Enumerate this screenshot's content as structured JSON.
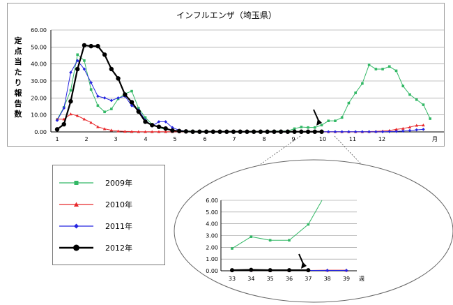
{
  "chart_data": [
    {
      "type": "line",
      "title": "インフルエンザ（埼玉県）",
      "ylabel": "定点当たり報告数",
      "xlabel": "月",
      "x_ticks": [
        "1",
        "2",
        "3",
        "4",
        "5",
        "6",
        "7",
        "8",
        "9",
        "10",
        "11",
        "12",
        "月"
      ],
      "y_ticks": [
        "0.00",
        "10.00",
        "20.00",
        "30.00",
        "40.00",
        "50.00",
        "60.00"
      ],
      "ylim": [
        0,
        60
      ],
      "grid": true,
      "series": [
        {
          "name": "2009年",
          "color": "#33b866",
          "marker": "square",
          "values": [
            7.3,
            14.5,
            24.5,
            45.5,
            42,
            25,
            15.5,
            11.8,
            13.5,
            19.5,
            22.5,
            24,
            14,
            8.5,
            4.5,
            2.5,
            1.5,
            1,
            0.6,
            0.5,
            0.5,
            0.3,
            0.3,
            0.3,
            0.3,
            0.3,
            0.3,
            0.3,
            0.3,
            0.3,
            0.3,
            0.3,
            0.5,
            0.5,
            0.5,
            1.9,
            2.9,
            2.6,
            2.6,
            4,
            6.5,
            6.5,
            8.5,
            17,
            23,
            28.5,
            39.5,
            37,
            37,
            38.5,
            36,
            27,
            22,
            19,
            16,
            7.8
          ]
        },
        {
          "name": "2010年",
          "color": "#e8282b",
          "marker": "triangle",
          "values": [
            7.5,
            7.5,
            10.5,
            9.5,
            7.5,
            5.5,
            3,
            1.8,
            1,
            0.5,
            0.3,
            0.2,
            0.1,
            0.1,
            0.1,
            0.1,
            0.1,
            0.1,
            0.1,
            0.1,
            0.1,
            0.1,
            0.1,
            0.1,
            0.1,
            0.1,
            0.1,
            0.1,
            0.1,
            0.1,
            0.1,
            0.1,
            0.1,
            0.1,
            0.1,
            0.1,
            0.1,
            0.1,
            0.1,
            0.1,
            0.1,
            0.1,
            0.1,
            0.1,
            0.1,
            0.1,
            0.2,
            0.3,
            0.5,
            0.8,
            1.5,
            2,
            2.8,
            3.8,
            4
          ]
        },
        {
          "name": "2011年",
          "color": "#2525e0",
          "marker": "diamond",
          "values": [
            6.8,
            14,
            35,
            42,
            37,
            29,
            21,
            20,
            18.5,
            20,
            21,
            15.5,
            13,
            7,
            3.5,
            6,
            6,
            2.5,
            1,
            0.5,
            0.3,
            0.2,
            0.1,
            0.1,
            0.1,
            0.1,
            0.1,
            0.1,
            0.1,
            0.1,
            0.1,
            0.1,
            0.1,
            0.1,
            0.1,
            0.1,
            0.1,
            0.1,
            0.1,
            0.1,
            0.1,
            0.1,
            0.1,
            0.1,
            0.1,
            0.1,
            0.1,
            0.1,
            0.1,
            0.2,
            0.3,
            0.5,
            0.8,
            1.2,
            1.5
          ]
        },
        {
          "name": "2012年",
          "color": "#000000",
          "marker": "circle",
          "values": [
            1.5,
            4.5,
            18,
            37,
            51,
            50.5,
            50.5,
            45.5,
            37,
            31.5,
            22,
            17.5,
            12,
            6,
            4,
            3,
            2,
            0.8,
            0.5,
            0.3,
            0.1,
            0.1,
            0.1,
            0.1,
            0.1,
            0.1,
            0.1,
            0.1,
            0.1,
            0.1,
            0.1,
            0.1,
            0.1,
            0.1,
            0.1,
            0.1,
            0.1,
            0.1,
            0.1,
            0.1
          ]
        }
      ]
    },
    {
      "type": "line",
      "title": "",
      "xlabel": "週",
      "x_ticks": [
        "33",
        "34",
        "35",
        "36",
        "37",
        "38",
        "39",
        "週"
      ],
      "y_ticks": [
        "0.00",
        "1.00",
        "2.00",
        "3.00",
        "4.00",
        "5.00",
        "6.00"
      ],
      "ylim": [
        0,
        6
      ],
      "grid": true,
      "series": [
        {
          "name": "2009年",
          "color": "#33b866",
          "marker": "square",
          "x": [
            33,
            34,
            35,
            36,
            37,
            38
          ],
          "values": [
            1.9,
            2.9,
            2.6,
            2.6,
            3.95,
            6.8
          ]
        },
        {
          "name": "2010年",
          "color": "#e8282b",
          "marker": "triangle",
          "x": [
            33,
            34,
            35,
            36,
            37,
            38,
            39
          ],
          "values": [
            0.05,
            0.05,
            0.03,
            0.03,
            0.03,
            0.05,
            0.05
          ]
        },
        {
          "name": "2011年",
          "color": "#2525e0",
          "marker": "diamond",
          "x": [
            33,
            34,
            35,
            36,
            37,
            38,
            39
          ],
          "values": [
            0.03,
            0.03,
            0.03,
            0.03,
            0.03,
            0.03,
            0.03
          ]
        },
        {
          "name": "2012年",
          "color": "#000000",
          "marker": "circle",
          "x": [
            33,
            34,
            35,
            36,
            37
          ],
          "values": [
            0.05,
            0.08,
            0.05,
            0.05,
            0.05
          ]
        }
      ]
    }
  ],
  "legend": [
    {
      "label": "2009年",
      "color": "#33b866",
      "marker": "square"
    },
    {
      "label": "2010年",
      "color": "#e8282b",
      "marker": "triangle"
    },
    {
      "label": "2011年",
      "color": "#2525e0",
      "marker": "diamond"
    },
    {
      "label": "2012年",
      "color": "#000000",
      "marker": "circle"
    }
  ]
}
